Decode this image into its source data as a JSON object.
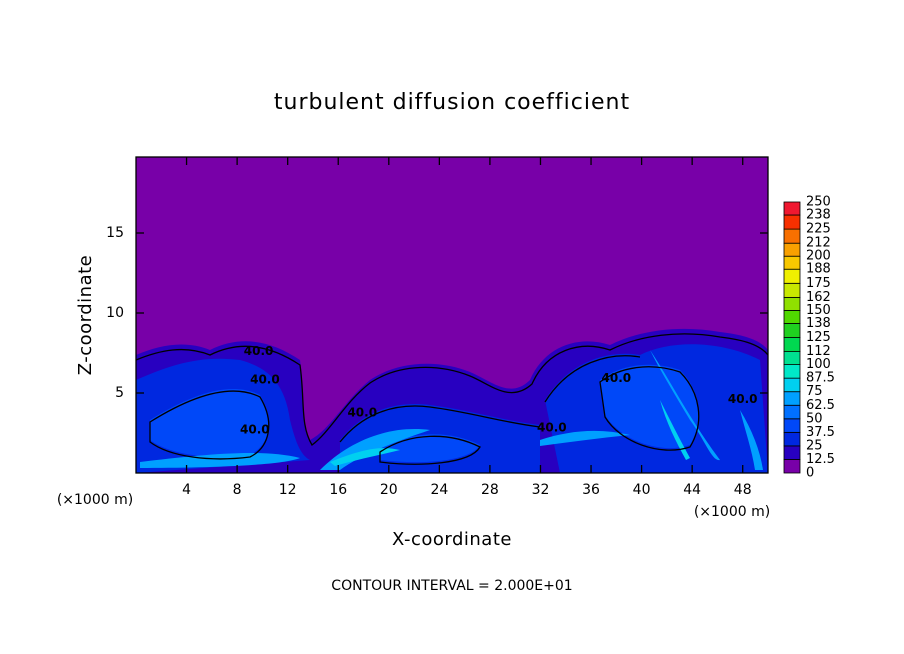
{
  "chart_data": {
    "type": "contour",
    "title": "turbulent diffusion coefficient",
    "x_label": "X-coordinate",
    "y_label": "Z-coordinate",
    "x_unit": "(×1000 m)",
    "y_unit": "(×1000 m)",
    "contour_interval_label": "CONTOUR INTERVAL = 2.000E+01",
    "xlim": [
      0,
      50
    ],
    "xticks": [
      4,
      8,
      12,
      16,
      20,
      24,
      28,
      32,
      36,
      40,
      44,
      48
    ],
    "ylim": [
      0,
      19.75
    ],
    "yticks": [
      5,
      10,
      15
    ],
    "colorbar": {
      "levels": [
        0,
        12.5,
        25,
        37.5,
        50,
        62.5,
        75,
        87.5,
        100,
        112,
        125,
        138,
        150,
        162,
        175,
        188,
        200,
        212,
        225,
        238,
        250
      ],
      "colors": [
        "#7800a8",
        "#2800c0",
        "#0028e0",
        "#0048f8",
        "#0070ff",
        "#00a0ff",
        "#00d0f0",
        "#00e8c8",
        "#00e090",
        "#00d850",
        "#20d020",
        "#50d800",
        "#90e000",
        "#c8e800",
        "#f0f000",
        "#f8c800",
        "#f8a000",
        "#f87000",
        "#f83000",
        "#f01830"
      ]
    },
    "contour_labels": [
      {
        "text": "40.0",
        "x": 9.7,
        "y": 7.6
      },
      {
        "text": "40.0",
        "x": 10.2,
        "y": 5.8
      },
      {
        "text": "40.0",
        "x": 17.9,
        "y": 3.75
      },
      {
        "text": "40.0",
        "x": 9.4,
        "y": 2.7
      },
      {
        "text": "40.0",
        "x": 32.9,
        "y": 2.8
      },
      {
        "text": "40.0",
        "x": 38.0,
        "y": 5.9
      },
      {
        "text": "40.0",
        "x": 48.0,
        "y": 4.6
      }
    ]
  }
}
